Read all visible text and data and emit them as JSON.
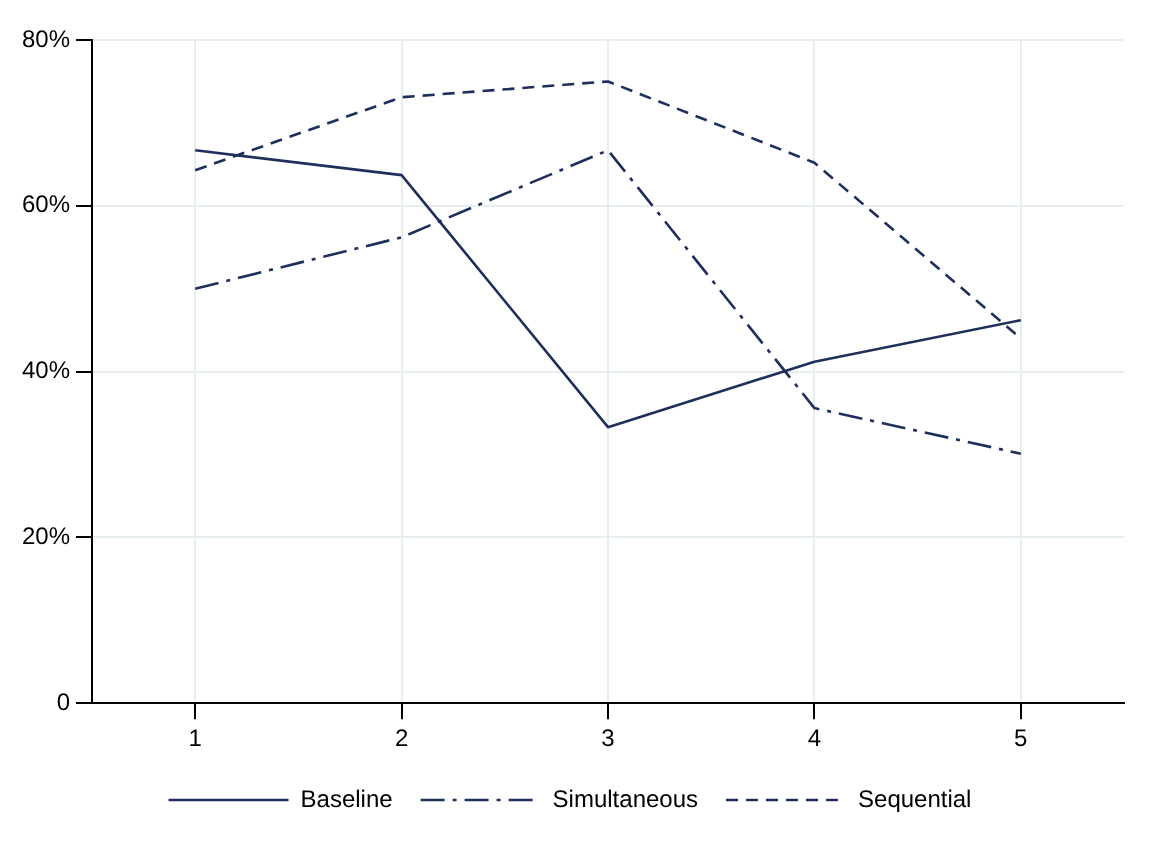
{
  "chart_data": {
    "type": "line",
    "categories": [
      "1",
      "2",
      "3",
      "4",
      "5"
    ],
    "series": [
      {
        "name": "Baseline",
        "color": "#1f2f5c",
        "line_style": "solid",
        "values": [
          66.7,
          63.7,
          33.3,
          41.2,
          46.2
        ]
      },
      {
        "name": "Simultaneous",
        "color": "#1f2f5c",
        "line_style": "dashdot",
        "values": [
          50,
          56.2,
          66.7,
          35.6,
          30.1
        ]
      },
      {
        "name": "Sequential",
        "color": "#1f2f5c",
        "line_style": "dashed",
        "values": [
          64.3,
          73.1,
          75,
          65.2,
          44
        ]
      }
    ],
    "ylim": [
      0,
      80
    ],
    "yticks": [
      {
        "value": 0,
        "label": "0"
      },
      {
        "value": 20,
        "label": "20%"
      },
      {
        "value": 40,
        "label": "40%"
      },
      {
        "value": 60,
        "label": "60%"
      },
      {
        "value": 80,
        "label": "80%"
      }
    ],
    "grid": true,
    "legend": "bottom",
    "marker": "none"
  }
}
